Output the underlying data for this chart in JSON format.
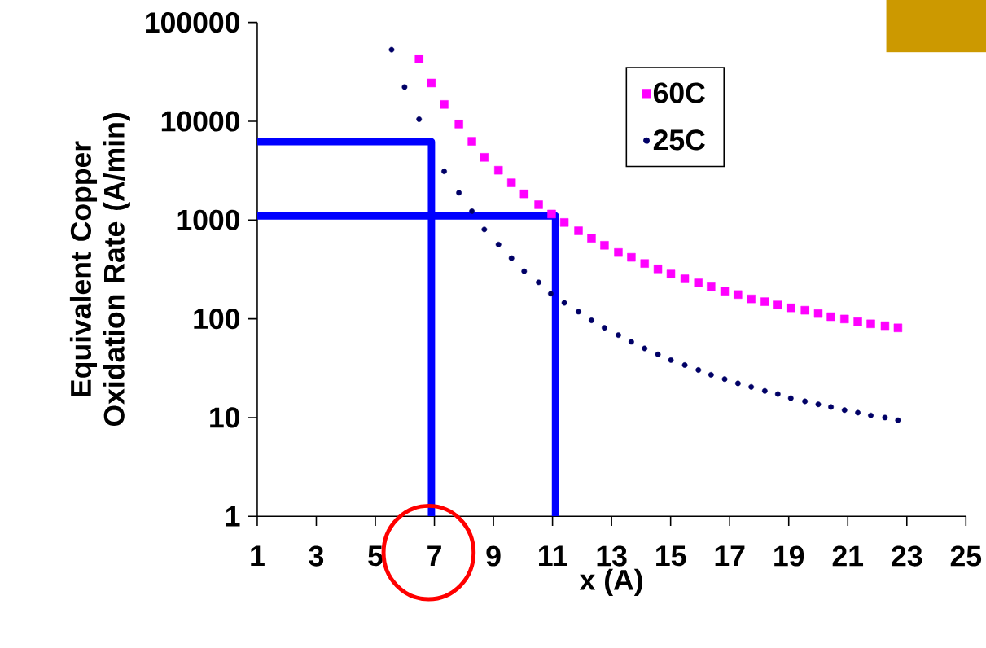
{
  "chart_data": {
    "type": "scatter",
    "xlabel": "x (A)",
    "ylabel": "Equivalent Copper Oxidation Rate (A/min)",
    "log": "y",
    "legend": "top right",
    "grid": false,
    "xlim": [
      1,
      25
    ],
    "xticks": [
      1,
      3,
      5,
      7,
      9,
      11,
      13,
      15,
      17,
      19,
      21,
      23,
      25
    ],
    "ylim": [
      1,
      100000
    ],
    "yticks": [
      1,
      10,
      100,
      1000,
      10000,
      100000
    ],
    "series": [
      {
        "name": "60C",
        "color": "#ff00ff",
        "marker": "square",
        "x": [
          6.48,
          6.9,
          7.33,
          7.83,
          8.27,
          8.69,
          9.17,
          9.61,
          10.04,
          10.53,
          10.97,
          11.4,
          11.88,
          12.32,
          12.76,
          13.23,
          13.67,
          14.12,
          14.57,
          15.01,
          15.48,
          15.94,
          16.37,
          16.83,
          17.28,
          17.73,
          18.19,
          18.63,
          19.07,
          19.55,
          20.0,
          20.43,
          20.89,
          21.34,
          21.78,
          22.26,
          22.7
        ],
        "values": [
          42800,
          24400,
          14800,
          9370,
          6270,
          4310,
          3190,
          2380,
          1840,
          1430,
          1150,
          944,
          778,
          653,
          555,
          469,
          419,
          363,
          320,
          284,
          254,
          231,
          211,
          190,
          176,
          159,
          149,
          138,
          129,
          122,
          113,
          105,
          99.5,
          93.5,
          88.9,
          85.1,
          80.9
        ]
      },
      {
        "name": "25C",
        "color": "#000066",
        "marker": "circle",
        "x": [
          5.55,
          5.99,
          6.48,
          7.33,
          7.83,
          8.27,
          8.69,
          9.17,
          9.61,
          10.04,
          10.53,
          10.94,
          11.4,
          11.88,
          12.32,
          12.76,
          13.23,
          13.67,
          14.12,
          14.57,
          15.01,
          15.48,
          15.94,
          16.37,
          16.83,
          17.28,
          17.73,
          18.19,
          18.63,
          19.07,
          19.55,
          20.0,
          20.43,
          20.89,
          21.34,
          21.78,
          22.26,
          22.7
        ],
        "values": [
          53000,
          22200,
          10500,
          3110,
          1890,
          1230,
          803,
          565,
          411,
          303,
          234,
          180,
          145,
          118,
          96.5,
          80.9,
          68.4,
          58.5,
          50.1,
          43.6,
          38.2,
          34.0,
          30.3,
          27.1,
          24.5,
          22.2,
          20.4,
          18.6,
          17.3,
          15.7,
          14.6,
          13.6,
          12.8,
          11.9,
          11.2,
          10.5,
          10.0,
          9.4
        ]
      },
      {
        "type": "line",
        "color": "#0000ff",
        "x": [
          1,
          6.9,
          6.9
        ],
        "values": [
          6200,
          6200,
          1
        ]
      },
      {
        "type": "line",
        "color": "#0000ff",
        "x": [
          1,
          11.1,
          11.1
        ],
        "values": [
          1100,
          1100,
          1
        ]
      }
    ]
  }
}
